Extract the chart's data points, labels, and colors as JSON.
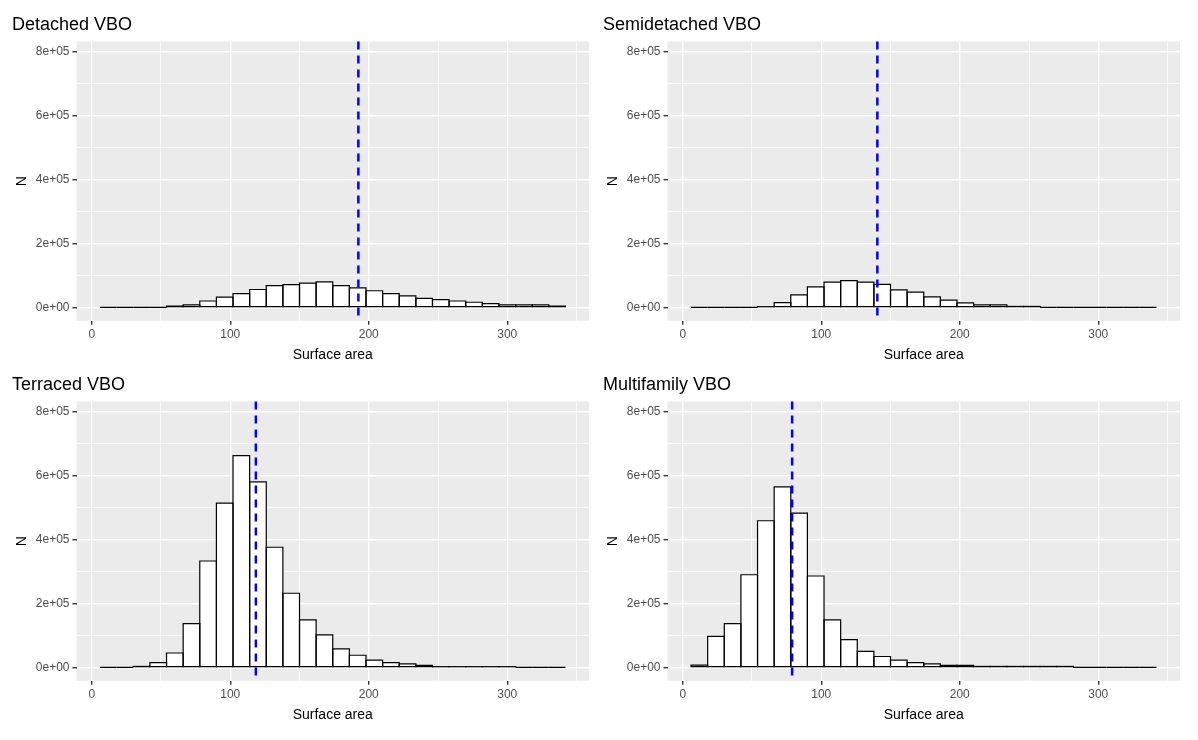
{
  "chart_data": [
    {
      "type": "histogram",
      "title": "Detached VBO",
      "xlabel": "Surface area",
      "ylabel": "N",
      "color": "#ffffff",
      "grid": true,
      "bins": [
        6,
        18,
        30,
        42,
        54,
        66,
        78,
        90,
        102,
        114,
        126,
        138,
        150,
        162,
        174,
        186,
        198,
        210,
        222,
        234,
        246,
        258,
        270,
        282,
        294,
        306,
        318,
        330,
        342
      ],
      "values": [
        0,
        0,
        0,
        0,
        4000,
        8000,
        20000,
        32000,
        43000,
        56000,
        68000,
        71000,
        76000,
        80000,
        68000,
        61000,
        52000,
        43000,
        36000,
        28000,
        24000,
        20000,
        16000,
        12000,
        8000,
        8000,
        8000,
        4000
      ],
      "xlim": [
        -11,
        359
      ],
      "xticks": [
        0,
        {
          "value": 50,
          "label": null
        },
        100,
        {
          "value": 150,
          "label": null
        },
        200,
        {
          "value": 250,
          "label": null
        },
        300,
        {
          "value": 350,
          "label": null
        }
      ],
      "ylim": [
        -42000,
        832000
      ],
      "yticks": [
        {
          "value": 0,
          "label": "0e+00"
        },
        {
          "value": 100000,
          "label": null
        },
        {
          "value": 200000,
          "label": "2e+05"
        },
        {
          "value": 300000,
          "label": null
        },
        {
          "value": 400000,
          "label": "4e+05"
        },
        {
          "value": 500000,
          "label": null
        },
        {
          "value": 600000,
          "label": "6e+05"
        },
        {
          "value": 700000,
          "label": null
        },
        {
          "value": 800000,
          "label": "8e+05"
        }
      ],
      "ref_lines": [
        {
          "axis": "x",
          "value": 192.5,
          "color": "#0000ff",
          "line_style": "dashed"
        }
      ]
    },
    {
      "type": "histogram",
      "title": "Semidetached VBO",
      "xlabel": "Surface area",
      "ylabel": "N",
      "color": "#ffffff",
      "grid": true,
      "bins": [
        6,
        18,
        30,
        42,
        54,
        66,
        78,
        90,
        102,
        114,
        126,
        138,
        150,
        162,
        174,
        186,
        198,
        210,
        222,
        234,
        246,
        258,
        270,
        282,
        294,
        306,
        318,
        330,
        342
      ],
      "values": [
        0,
        0,
        0,
        0,
        2000,
        15000,
        39000,
        64000,
        79000,
        84000,
        79000,
        72000,
        55000,
        48000,
        33000,
        23000,
        14000,
        8000,
        8000,
        3000,
        3000,
        0,
        0,
        0,
        0,
        0,
        0,
        0
      ],
      "xlim": [
        -11,
        359
      ],
      "xticks": [
        0,
        {
          "value": 50,
          "label": null
        },
        100,
        {
          "value": 150,
          "label": null
        },
        200,
        {
          "value": 250,
          "label": null
        },
        300,
        {
          "value": 350,
          "label": null
        }
      ],
      "ylim": [
        -42000,
        832000
      ],
      "yticks": [
        {
          "value": 0,
          "label": "0e+00"
        },
        {
          "value": 100000,
          "label": null
        },
        {
          "value": 200000,
          "label": "2e+05"
        },
        {
          "value": 300000,
          "label": null
        },
        {
          "value": 400000,
          "label": "4e+05"
        },
        {
          "value": 500000,
          "label": null
        },
        {
          "value": 600000,
          "label": "6e+05"
        },
        {
          "value": 700000,
          "label": null
        },
        {
          "value": 800000,
          "label": "8e+05"
        }
      ],
      "ref_lines": [
        {
          "axis": "x",
          "value": 140.5,
          "color": "#0000ff",
          "line_style": "dashed"
        }
      ]
    },
    {
      "type": "histogram",
      "title": "Terraced VBO",
      "xlabel": "Surface area",
      "ylabel": "N",
      "color": "#ffffff",
      "grid": true,
      "bins": [
        6,
        18,
        30,
        42,
        54,
        66,
        78,
        90,
        102,
        114,
        126,
        138,
        150,
        162,
        174,
        186,
        198,
        210,
        222,
        234,
        246,
        258,
        270,
        282,
        294,
        306,
        318,
        330,
        342
      ],
      "values": [
        0,
        0,
        3000,
        15000,
        45000,
        137000,
        333000,
        514000,
        663000,
        581000,
        376000,
        232000,
        149000,
        102000,
        58000,
        38000,
        23000,
        15000,
        11000,
        6000,
        2000,
        2000,
        2000,
        2000,
        2000,
        0,
        0,
        0
      ],
      "xlim": [
        -11,
        359
      ],
      "xticks": [
        0,
        {
          "value": 50,
          "label": null
        },
        100,
        {
          "value": 150,
          "label": null
        },
        200,
        {
          "value": 250,
          "label": null
        },
        300,
        {
          "value": 350,
          "label": null
        }
      ],
      "ylim": [
        -42000,
        832000
      ],
      "yticks": [
        {
          "value": 0,
          "label": "0e+00"
        },
        {
          "value": 100000,
          "label": null
        },
        {
          "value": 200000,
          "label": "2e+05"
        },
        {
          "value": 300000,
          "label": null
        },
        {
          "value": 400000,
          "label": "4e+05"
        },
        {
          "value": 500000,
          "label": null
        },
        {
          "value": 600000,
          "label": "6e+05"
        },
        {
          "value": 700000,
          "label": null
        },
        {
          "value": 800000,
          "label": "8e+05"
        }
      ],
      "ref_lines": [
        {
          "axis": "x",
          "value": 118.5,
          "color": "#0000ff",
          "line_style": "dashed"
        }
      ]
    },
    {
      "type": "histogram",
      "title": "Multifamily VBO",
      "xlabel": "Surface area",
      "ylabel": "N",
      "color": "#ffffff",
      "grid": true,
      "bins": [
        6,
        18,
        30,
        42,
        54,
        66,
        78,
        90,
        102,
        114,
        126,
        138,
        150,
        162,
        174,
        186,
        198,
        210,
        222,
        234,
        246,
        258,
        270,
        282,
        294,
        306,
        318,
        330,
        342
      ],
      "values": [
        7000,
        97000,
        137000,
        290000,
        459000,
        565000,
        483000,
        286000,
        149000,
        87000,
        50000,
        34000,
        23000,
        15000,
        11000,
        6000,
        6000,
        3000,
        3000,
        3000,
        3000,
        3000,
        3000,
        0,
        0,
        0,
        0,
        0
      ],
      "xlim": [
        -11,
        359
      ],
      "xticks": [
        0,
        {
          "value": 50,
          "label": null
        },
        100,
        {
          "value": 150,
          "label": null
        },
        200,
        {
          "value": 250,
          "label": null
        },
        300,
        {
          "value": 350,
          "label": null
        }
      ],
      "ylim": [
        -42000,
        832000
      ],
      "yticks": [
        {
          "value": 0,
          "label": "0e+00"
        },
        {
          "value": 100000,
          "label": null
        },
        {
          "value": 200000,
          "label": "2e+05"
        },
        {
          "value": 300000,
          "label": null
        },
        {
          "value": 400000,
          "label": "4e+05"
        },
        {
          "value": 500000,
          "label": null
        },
        {
          "value": 600000,
          "label": "6e+05"
        },
        {
          "value": 700000,
          "label": null
        },
        {
          "value": 800000,
          "label": "8e+05"
        }
      ],
      "ref_lines": [
        {
          "axis": "x",
          "value": 79,
          "color": "#0000ff",
          "line_style": "dashed"
        }
      ]
    }
  ]
}
